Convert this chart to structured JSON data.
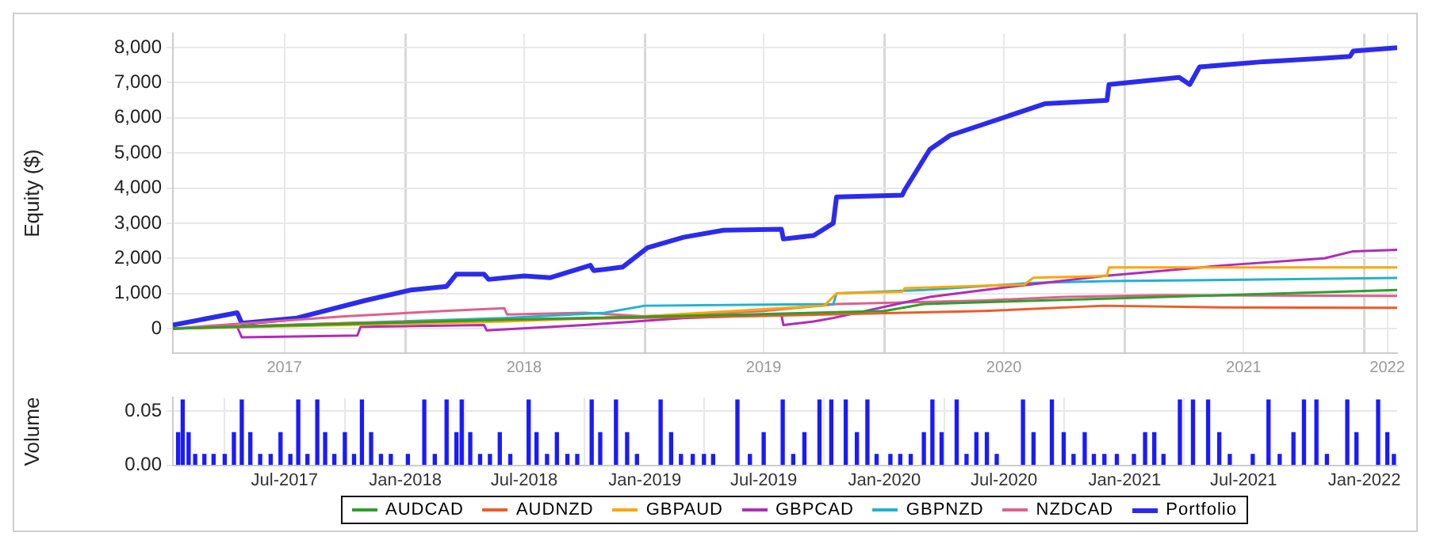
{
  "chart_data": [
    {
      "type": "line",
      "ylabel": "Equity ($)",
      "xlim": [
        "2017-01-12",
        "2022-02-20"
      ],
      "ylim": [
        -700,
        8400
      ],
      "xticks": [
        {
          "value": "2017-07-01",
          "label": "2017"
        },
        {
          "value": "2018-01-01",
          "label": null
        },
        {
          "value": "2018-07-01",
          "label": "2018"
        },
        {
          "value": "2019-01-01",
          "label": null
        },
        {
          "value": "2019-07-01",
          "label": "2019"
        },
        {
          "value": "2020-01-01",
          "label": null
        },
        {
          "value": "2020-07-01",
          "label": "2020"
        },
        {
          "value": "2021-01-01",
          "label": null
        },
        {
          "value": "2021-07-01",
          "label": "2021"
        },
        {
          "value": "2022-01-01",
          "label": null
        },
        {
          "value": "2022-02-05",
          "label": "2022"
        }
      ],
      "yticks": [
        {
          "value": 0,
          "label": "0"
        },
        {
          "value": 1000,
          "label": "1,000"
        },
        {
          "value": 2000,
          "label": "2,000"
        },
        {
          "value": 3000,
          "label": "3,000"
        },
        {
          "value": 4000,
          "label": "4,000"
        },
        {
          "value": 5000,
          "label": "5,000"
        },
        {
          "value": 6000,
          "label": "6,000"
        },
        {
          "value": 7000,
          "label": "7,000"
        },
        {
          "value": 8000,
          "label": "8,000"
        }
      ],
      "grid": true,
      "legend": "bottom",
      "marker": "none",
      "line_style": "solid",
      "series": [
        {
          "name": "AUDCAD",
          "color": "#2ca02c",
          "x": [
            "2017-01-12",
            "2018-06-01",
            "2019-06-01",
            "2020-01-01",
            "2020-03-01",
            "2020-12-01",
            "2021-06-01",
            "2022-02-20"
          ],
          "values": [
            0,
            250,
            400,
            500,
            700,
            850,
            950,
            1100
          ]
        },
        {
          "name": "AUDNZD",
          "color": "#f05a28",
          "x": [
            "2017-01-12",
            "2017-10-01",
            "2018-06-01",
            "2019-06-01",
            "2020-06-01",
            "2020-12-01",
            "2021-06-01",
            "2022-02-20"
          ],
          "values": [
            0,
            150,
            250,
            350,
            500,
            650,
            600,
            590
          ]
        },
        {
          "name": "GBPAUD",
          "color": "#ffa500",
          "x": [
            "2017-01-12",
            "2017-10-01",
            "2018-06-01",
            "2019-01-01",
            "2019-10-01",
            "2019-10-20",
            "2020-01-28",
            "2020-02-01",
            "2020-08-01",
            "2020-08-15",
            "2020-12-05",
            "2020-12-08",
            "2022-02-20"
          ],
          "values": [
            0,
            100,
            200,
            350,
            650,
            1000,
            1050,
            1150,
            1250,
            1450,
            1500,
            1740,
            1740
          ]
        },
        {
          "name": "GBPCAD",
          "color": "#b02cb8",
          "x": [
            "2017-01-12",
            "2017-04-20",
            "2017-04-27",
            "2017-10-20",
            "2017-10-25",
            "2018-05-01",
            "2018-05-05",
            "2018-10-01",
            "2019-03-01",
            "2019-07-28",
            "2019-07-31",
            "2019-09-15",
            "2019-10-15",
            "2020-03-10",
            "2020-06-01",
            "2020-09-01",
            "2020-12-01",
            "2021-06-01",
            "2021-11-01",
            "2021-12-15",
            "2022-02-20"
          ],
          "values": [
            0,
            50,
            -250,
            -200,
            50,
            100,
            -50,
            100,
            300,
            400,
            100,
            200,
            300,
            900,
            1100,
            1300,
            1500,
            1800,
            2000,
            2200,
            2240
          ]
        },
        {
          "name": "GBPNZD",
          "color": "#20b2d0",
          "x": [
            "2017-01-12",
            "2018-06-01",
            "2018-11-01",
            "2019-01-01",
            "2019-10-15",
            "2019-10-20",
            "2020-03-01",
            "2020-08-15",
            "2020-12-08",
            "2022-02-20"
          ],
          "values": [
            0,
            300,
            450,
            650,
            700,
            1000,
            1100,
            1300,
            1350,
            1440
          ]
        },
        {
          "name": "NZDCAD",
          "color": "#e0608a",
          "x": [
            "2017-01-12",
            "2017-10-01",
            "2018-03-01",
            "2018-06-01",
            "2018-06-05",
            "2018-10-01",
            "2019-01-01",
            "2019-07-01",
            "2019-10-20",
            "2020-06-01",
            "2020-10-01",
            "2021-03-01",
            "2022-02-20"
          ],
          "values": [
            0,
            350,
            500,
            580,
            400,
            450,
            350,
            500,
            700,
            800,
            900,
            950,
            930
          ]
        },
        {
          "name": "Portfolio",
          "color": "#2b2bef",
          "x": [
            "2017-01-12",
            "2017-04-20",
            "2017-04-27",
            "2017-07-20",
            "2017-11-01",
            "2018-01-10",
            "2018-03-05",
            "2018-03-20",
            "2018-05-01",
            "2018-05-08",
            "2018-07-01",
            "2018-08-10",
            "2018-10-10",
            "2018-10-15",
            "2018-11-28",
            "2019-01-05",
            "2019-03-01",
            "2019-05-01",
            "2019-07-28",
            "2019-07-31",
            "2019-09-15",
            "2019-10-15",
            "2019-10-20",
            "2020-01-28",
            "2020-02-01",
            "2020-03-10",
            "2020-04-10",
            "2020-09-01",
            "2020-12-05",
            "2020-12-08",
            "2021-03-25",
            "2021-04-10",
            "2021-04-25",
            "2021-08-01",
            "2021-11-01",
            "2021-12-10",
            "2021-12-15",
            "2022-02-20"
          ],
          "values": [
            100,
            450,
            150,
            300,
            800,
            1100,
            1200,
            1550,
            1550,
            1400,
            1500,
            1450,
            1800,
            1650,
            1750,
            2300,
            2600,
            2800,
            2830,
            2550,
            2650,
            3000,
            3750,
            3800,
            3950,
            5100,
            5500,
            6400,
            6500,
            6950,
            7150,
            6950,
            7450,
            7600,
            7700,
            7750,
            7900,
            8000
          ]
        }
      ]
    },
    {
      "type": "bar",
      "ylabel": "Volume",
      "xlim": [
        "2017-01-12",
        "2022-02-20"
      ],
      "ylim": [
        0,
        0.062
      ],
      "xticks": [
        {
          "value": "2017-07-01",
          "label": "Jul-2017"
        },
        {
          "value": "2018-01-01",
          "label": "Jan-2018"
        },
        {
          "value": "2018-07-01",
          "label": "Jul-2018"
        },
        {
          "value": "2019-01-01",
          "label": "Jan-2019"
        },
        {
          "value": "2019-07-01",
          "label": "Jul-2019"
        },
        {
          "value": "2020-01-01",
          "label": "Jan-2020"
        },
        {
          "value": "2020-07-01",
          "label": "Jul-2020"
        },
        {
          "value": "2021-01-01",
          "label": "Jan-2021"
        },
        {
          "value": "2021-07-01",
          "label": "Jul-2021"
        },
        {
          "value": "2022-01-01",
          "label": "Jan-2022"
        }
      ],
      "yticks": [
        {
          "value": 0,
          "label": "0.00"
        },
        {
          "value": 0.05,
          "label": "0.05"
        }
      ],
      "grid": true,
      "color": "#1a1aff",
      "x": [
        "2017-01-20",
        "2017-01-27",
        "2017-02-05",
        "2017-02-15",
        "2017-03-01",
        "2017-03-15",
        "2017-04-01",
        "2017-04-15",
        "2017-04-27",
        "2017-05-10",
        "2017-05-25",
        "2017-06-10",
        "2017-06-25",
        "2017-07-10",
        "2017-07-22",
        "2017-08-05",
        "2017-08-20",
        "2017-09-01",
        "2017-09-15",
        "2017-10-01",
        "2017-10-15",
        "2017-10-27",
        "2017-11-10",
        "2017-11-25",
        "2017-12-10",
        "2018-01-05",
        "2018-01-30",
        "2018-02-15",
        "2018-03-05",
        "2018-03-20",
        "2018-03-28",
        "2018-04-10",
        "2018-04-25",
        "2018-05-10",
        "2018-05-25",
        "2018-06-10",
        "2018-07-08",
        "2018-07-20",
        "2018-08-05",
        "2018-08-20",
        "2018-09-05",
        "2018-09-20",
        "2018-10-12",
        "2018-10-25",
        "2018-11-18",
        "2018-12-05",
        "2018-12-20",
        "2019-01-25",
        "2019-02-10",
        "2019-02-25",
        "2019-03-15",
        "2019-04-01",
        "2019-04-15",
        "2019-05-22",
        "2019-06-10",
        "2019-07-01",
        "2019-07-30",
        "2019-08-15",
        "2019-09-01",
        "2019-09-24",
        "2019-10-12",
        "2019-11-03",
        "2019-11-20",
        "2019-12-06",
        "2019-12-20",
        "2020-01-10",
        "2020-01-25",
        "2020-02-10",
        "2020-03-01",
        "2020-03-14",
        "2020-03-28",
        "2020-04-20",
        "2020-05-05",
        "2020-05-20",
        "2020-06-05",
        "2020-06-20",
        "2020-07-30",
        "2020-08-15",
        "2020-09-12",
        "2020-09-30",
        "2020-10-15",
        "2020-11-01",
        "2020-11-15",
        "2020-12-01",
        "2020-12-20",
        "2021-01-15",
        "2021-02-01",
        "2021-02-15",
        "2021-03-01",
        "2021-03-26",
        "2021-04-15",
        "2021-05-08",
        "2021-05-25",
        "2021-06-10",
        "2021-07-15",
        "2021-08-08",
        "2021-08-25",
        "2021-09-15",
        "2021-10-01",
        "2021-10-20",
        "2021-11-05",
        "2021-12-06",
        "2021-12-20",
        "2022-01-22",
        "2022-02-05",
        "2022-02-15"
      ],
      "values": [
        0.03,
        0.06,
        0.03,
        0.01,
        0.01,
        0.01,
        0.01,
        0.03,
        0.06,
        0.03,
        0.01,
        0.01,
        0.03,
        0.01,
        0.06,
        0.01,
        0.06,
        0.03,
        0.01,
        0.03,
        0.01,
        0.06,
        0.03,
        0.01,
        0.01,
        0.01,
        0.06,
        0.01,
        0.06,
        0.03,
        0.06,
        0.03,
        0.01,
        0.01,
        0.03,
        0.01,
        0.06,
        0.03,
        0.01,
        0.03,
        0.01,
        0.01,
        0.06,
        0.03,
        0.06,
        0.03,
        0.01,
        0.06,
        0.03,
        0.01,
        0.01,
        0.01,
        0.01,
        0.06,
        0.01,
        0.03,
        0.06,
        0.01,
        0.03,
        0.06,
        0.06,
        0.06,
        0.03,
        0.06,
        0.01,
        0.01,
        0.01,
        0.01,
        0.03,
        0.06,
        0.03,
        0.06,
        0.01,
        0.03,
        0.03,
        0.01,
        0.06,
        0.03,
        0.06,
        0.03,
        0.01,
        0.03,
        0.01,
        0.01,
        0.01,
        0.01,
        0.03,
        0.03,
        0.01,
        0.06,
        0.06,
        0.06,
        0.03,
        0.01,
        0.01,
        0.06,
        0.01,
        0.03,
        0.06,
        0.06,
        0.01,
        0.06,
        0.03,
        0.06,
        0.03,
        0.01
      ]
    }
  ]
}
